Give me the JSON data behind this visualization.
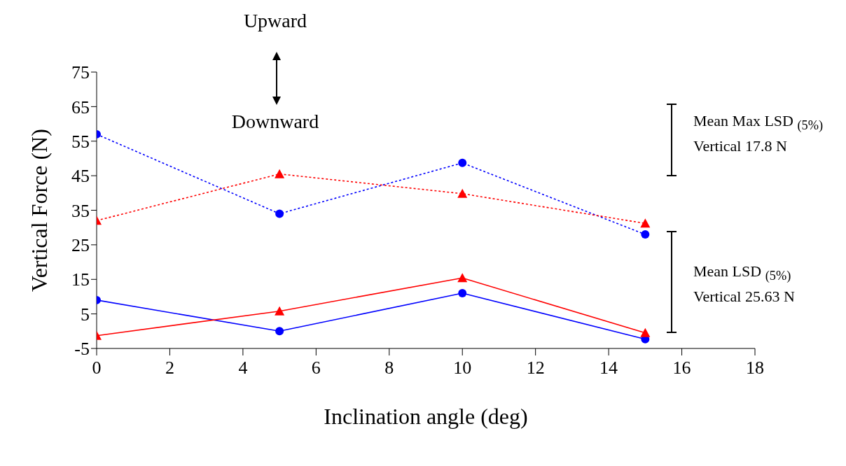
{
  "chart_data": {
    "type": "line",
    "xlabel": "Inclination angle (deg)",
    "ylabel": "Vertical Force (N)",
    "x": [
      0,
      5,
      10,
      15
    ],
    "series": [
      {
        "color": "#0000ff",
        "values": [
          57,
          34,
          48.7,
          28
        ],
        "marker": "circle",
        "line_style": "dotted"
      },
      {
        "color": "#ff0000",
        "values": [
          32,
          45.5,
          39.8,
          31.2
        ],
        "marker": "triangle",
        "line_style": "dotted"
      },
      {
        "color": "#0000ff",
        "values": [
          9,
          0,
          11,
          -2.3
        ],
        "marker": "circle",
        "line_style": "solid"
      },
      {
        "color": "#ff0000",
        "values": [
          -1.3,
          5.8,
          15.4,
          -0.5
        ],
        "marker": "triangle",
        "line_style": "solid"
      }
    ],
    "xlim": [
      0,
      18
    ],
    "xticks": [
      0,
      2,
      4,
      6,
      8,
      10,
      12,
      14,
      16,
      18
    ],
    "ylim": [
      -5,
      75
    ],
    "yticks": [
      -5,
      5,
      15,
      25,
      35,
      45,
      55,
      65,
      75
    ],
    "annotations": [
      "Upward",
      "Downward",
      "Mean Max LSD $_{(5%)}$ Vertical 17.8 N",
      "Mean LSD $_{(5%)}$ Vertical 25.63 N"
    ]
  }
}
